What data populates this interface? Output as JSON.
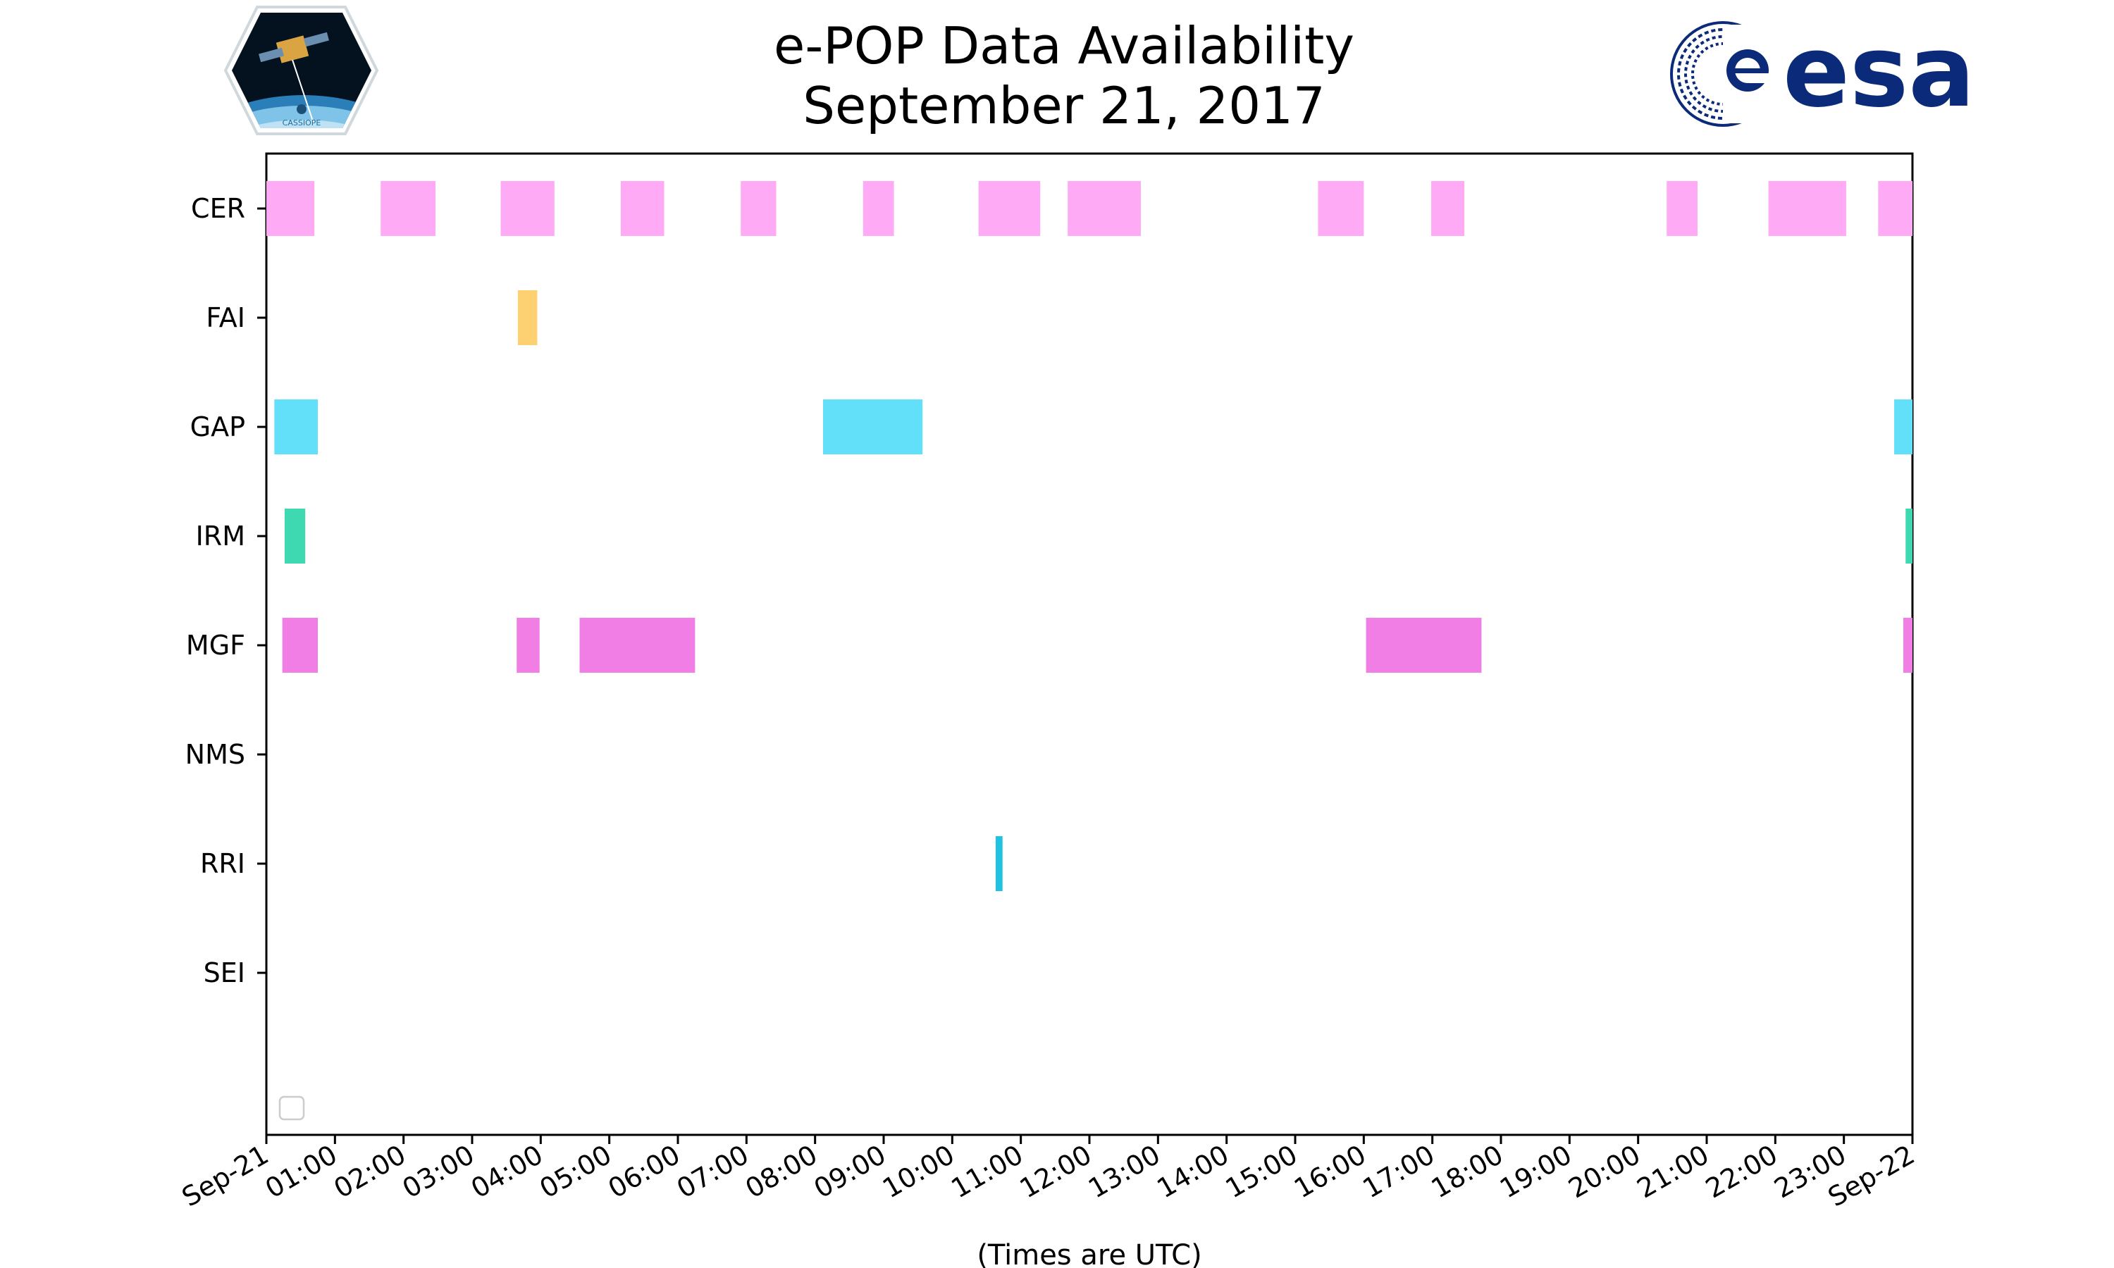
{
  "chart_data": {
    "type": "timeline",
    "title": [
      "e-POP Data Availability",
      "September 21, 2017"
    ],
    "xlabel": "(Times are UTC)",
    "xlim": [
      "2017-09-21T00:00",
      "2017-09-22T00:00"
    ],
    "x_tick_labels": [
      "Sep-21",
      "01:00",
      "02:00",
      "03:00",
      "04:00",
      "05:00",
      "06:00",
      "07:00",
      "08:00",
      "09:00",
      "10:00",
      "11:00",
      "12:00",
      "13:00",
      "14:00",
      "15:00",
      "16:00",
      "17:00",
      "18:00",
      "19:00",
      "20:00",
      "21:00",
      "22:00",
      "23:00",
      "Sep-22"
    ],
    "categories": [
      "CER",
      "FAI",
      "GAP",
      "IRM",
      "MGF",
      "NMS",
      "RRI",
      "SEI"
    ],
    "grid": false,
    "legend": {
      "placement": "lower-left",
      "entries": []
    },
    "series": [
      {
        "instrument": "CER",
        "color": "#ffaaf5",
        "intervals": [
          [
            "00:00",
            "00:42"
          ],
          [
            "01:40",
            "02:28"
          ],
          [
            "03:25",
            "04:12"
          ],
          [
            "05:10",
            "05:48"
          ],
          [
            "06:55",
            "07:26"
          ],
          [
            "08:42",
            "09:09"
          ],
          [
            "10:23",
            "11:17"
          ],
          [
            "11:41",
            "12:45"
          ],
          [
            "15:20",
            "16:00"
          ],
          [
            "16:59",
            "17:28"
          ],
          [
            "20:25",
            "20:52"
          ],
          [
            "21:54",
            "23:02"
          ],
          [
            "23:30",
            "24:00"
          ]
        ]
      },
      {
        "instrument": "FAI",
        "color": "#fdd171",
        "intervals": [
          [
            "03:40",
            "03:57"
          ]
        ]
      },
      {
        "instrument": "GAP",
        "color": "#63e0f9",
        "intervals": [
          [
            "00:07",
            "00:45"
          ],
          [
            "08:07",
            "09:34"
          ],
          [
            "23:44",
            "24:00"
          ]
        ]
      },
      {
        "instrument": "IRM",
        "color": "#3ed9b1",
        "intervals": [
          [
            "00:16",
            "00:34"
          ],
          [
            "23:54",
            "24:00"
          ]
        ]
      },
      {
        "instrument": "MGF",
        "color": "#f07ee4",
        "intervals": [
          [
            "00:14",
            "00:45"
          ],
          [
            "03:39",
            "03:59"
          ],
          [
            "04:34",
            "06:15"
          ],
          [
            "16:02",
            "17:43"
          ],
          [
            "23:52",
            "24:00"
          ]
        ]
      },
      {
        "instrument": "NMS",
        "color": "#cccccc",
        "intervals": []
      },
      {
        "instrument": "RRI",
        "color": "#1fc2e0",
        "intervals": [
          [
            "10:38",
            "10:44"
          ]
        ]
      },
      {
        "instrument": "SEI",
        "color": "#cccccc",
        "intervals": []
      }
    ]
  },
  "logos": {
    "cassiope": {
      "label": "CASSIOPE"
    },
    "esa": {
      "word": "esa",
      "color": "#0b2a7a"
    }
  }
}
